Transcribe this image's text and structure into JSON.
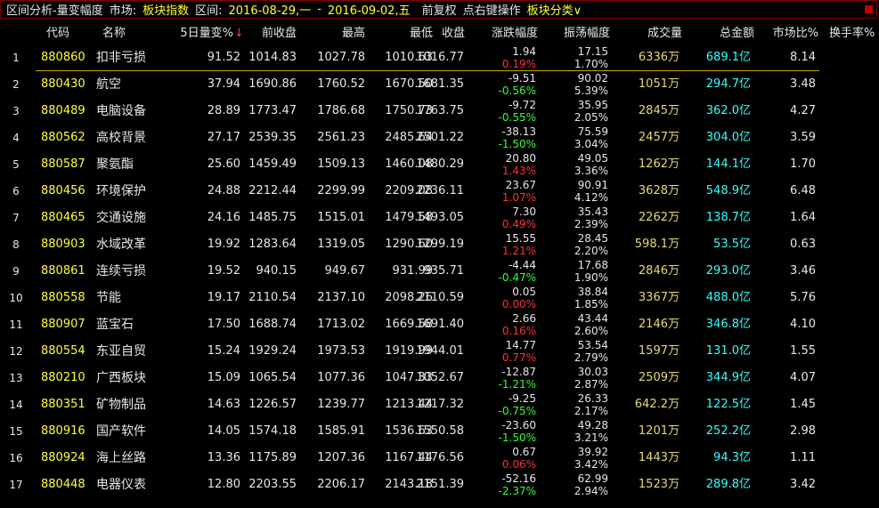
{
  "header": {
    "title": "区间分析-量变幅度",
    "market_label": "市场:",
    "market": "板块指数",
    "range_label": "区间:",
    "start": "2016-08-29,一",
    "separator": "-",
    "end": "2016-09-02,五",
    "adjust": "前复权",
    "hint": "点右键操作",
    "category": "板块分类∨"
  },
  "table": {
    "columns": [
      "代码",
      "名称",
      "5日量变%",
      "前收盘",
      "最高",
      "最低",
      "收盘",
      "涨跌幅度",
      "振荡幅度",
      "成交量",
      "总金额",
      "市场比%",
      "换手率%"
    ],
    "sort_arrow": "↓",
    "rows": [
      [
        "1",
        "880860",
        "扣非亏损",
        "91.52",
        "1014.83",
        "1027.78",
        "1010.63",
        "1016.77",
        "1.94",
        "0.19%",
        "17.15",
        "1.70%",
        "6336万",
        "689.1亿",
        "8.14"
      ],
      [
        "2",
        "880430",
        "航空",
        "37.94",
        "1690.86",
        "1760.52",
        "1670.50",
        "1681.35",
        "-9.51",
        "-0.56%",
        "90.02",
        "5.39%",
        "1051万",
        "294.7亿",
        "3.48"
      ],
      [
        "3",
        "880489",
        "电脑设备",
        "28.89",
        "1773.47",
        "1786.68",
        "1750.73",
        "1763.75",
        "-9.72",
        "-0.55%",
        "35.95",
        "2.05%",
        "2845万",
        "362.0亿",
        "4.27"
      ],
      [
        "4",
        "880562",
        "高校背景",
        "27.17",
        "2539.35",
        "2561.23",
        "2485.64",
        "2501.22",
        "-38.13",
        "-1.50%",
        "75.59",
        "3.04%",
        "2457万",
        "304.0亿",
        "3.59"
      ],
      [
        "5",
        "880587",
        "聚氨酯",
        "25.60",
        "1459.49",
        "1509.13",
        "1460.08",
        "1480.29",
        "20.80",
        "1.43%",
        "49.05",
        "3.36%",
        "1262万",
        "144.1亿",
        "1.70"
      ],
      [
        "6",
        "880456",
        "环境保护",
        "24.88",
        "2212.44",
        "2299.99",
        "2209.08",
        "2236.11",
        "23.67",
        "1.07%",
        "90.91",
        "4.12%",
        "3628万",
        "548.9亿",
        "6.48"
      ],
      [
        "7",
        "880465",
        "交通设施",
        "24.16",
        "1485.75",
        "1515.01",
        "1479.58",
        "1493.05",
        "7.30",
        "0.49%",
        "35.43",
        "2.39%",
        "2262万",
        "138.7亿",
        "1.64"
      ],
      [
        "8",
        "880903",
        "水域改革",
        "19.92",
        "1283.64",
        "1319.05",
        "1290.60",
        "1299.19",
        "15.55",
        "1.21%",
        "28.45",
        "2.20%",
        "598.1万",
        "53.5亿",
        "0.63"
      ],
      [
        "9",
        "880861",
        "连续亏损",
        "19.52",
        "940.15",
        "949.67",
        "931.99",
        "935.71",
        "-4.44",
        "-0.47%",
        "17.68",
        "1.90%",
        "2846万",
        "293.0亿",
        "3.46"
      ],
      [
        "10",
        "880558",
        "节能",
        "19.17",
        "2110.54",
        "2137.10",
        "2098.26",
        "2110.59",
        "0.05",
        "0.00%",
        "38.84",
        "1.85%",
        "3367万",
        "488.0亿",
        "5.76"
      ],
      [
        "11",
        "880907",
        "蓝宝石",
        "17.50",
        "1688.74",
        "1713.02",
        "1669.58",
        "1691.40",
        "2.66",
        "0.16%",
        "43.44",
        "2.60%",
        "2146万",
        "346.8亿",
        "4.10"
      ],
      [
        "12",
        "880554",
        "东亚自贸",
        "15.24",
        "1929.24",
        "1973.53",
        "1919.99",
        "1944.01",
        "14.77",
        "0.77%",
        "53.54",
        "2.79%",
        "1597万",
        "131.0亿",
        "1.55"
      ],
      [
        "13",
        "880210",
        "广西板块",
        "15.09",
        "1065.54",
        "1077.36",
        "1047.33",
        "1052.67",
        "-12.87",
        "-1.21%",
        "30.03",
        "2.87%",
        "2509万",
        "344.9亿",
        "4.07"
      ],
      [
        "14",
        "880351",
        "矿物制品",
        "14.63",
        "1226.57",
        "1239.77",
        "1213.44",
        "1217.32",
        "-9.25",
        "-0.75%",
        "26.33",
        "2.17%",
        "642.2万",
        "122.5亿",
        "1.45"
      ],
      [
        "15",
        "880916",
        "国产软件",
        "14.05",
        "1574.18",
        "1585.91",
        "1536.63",
        "1550.58",
        "-23.60",
        "-1.50%",
        "49.28",
        "3.21%",
        "1201万",
        "252.2亿",
        "2.98"
      ],
      [
        "16",
        "880924",
        "海上丝路",
        "13.36",
        "1175.89",
        "1207.36",
        "1167.44",
        "1176.56",
        "0.67",
        "0.06%",
        "39.92",
        "3.42%",
        "1443万",
        "94.3亿",
        "1.11"
      ],
      [
        "17",
        "880448",
        "电器仪表",
        "12.80",
        "2203.55",
        "2206.17",
        "2143.18",
        "2151.39",
        "-52.16",
        "-2.37%",
        "62.99",
        "2.94%",
        "1523万",
        "289.8亿",
        "3.42"
      ]
    ]
  }
}
